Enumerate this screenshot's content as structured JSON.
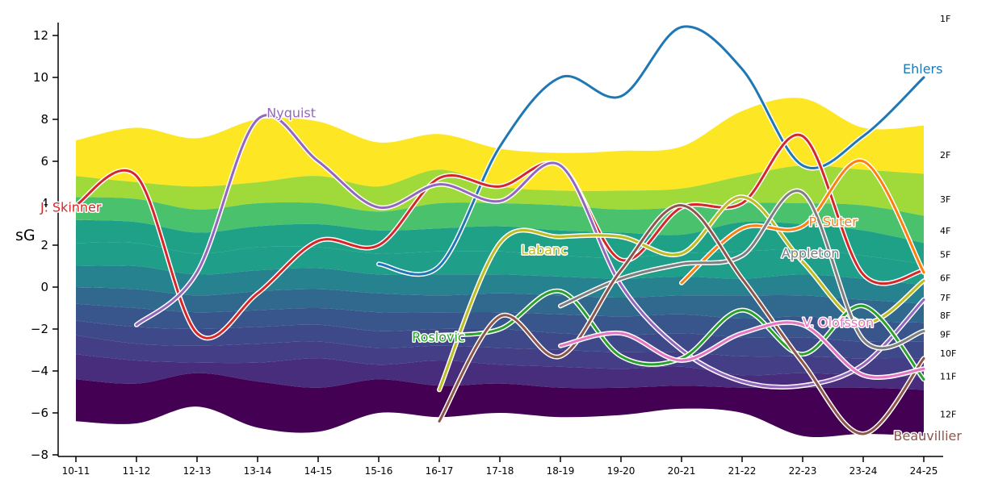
{
  "chart_data": {
    "type": "line",
    "ylabel": "sG",
    "ylim": [
      -8,
      12.5
    ],
    "yticks": [
      -8,
      -6,
      -4,
      -2,
      0,
      2,
      4,
      6,
      8,
      10,
      12
    ],
    "categories": [
      "10-11",
      "11-12",
      "12-13",
      "13-14",
      "14-15",
      "15-16",
      "16-17",
      "17-18",
      "18-19",
      "19-20",
      "20-21",
      "21-22",
      "22-23",
      "23-24",
      "24-25"
    ],
    "bands": {
      "labels": [
        "1F",
        "2F",
        "3F",
        "4F",
        "5F",
        "6F",
        "7F",
        "8F",
        "9F",
        "10F",
        "11F",
        "12F"
      ],
      "colors": [
        "#fde725",
        "#9fda3a",
        "#4ac16d",
        "#1fa187",
        "#1f9e89",
        "#26828e",
        "#31688e",
        "#39568c",
        "#3e4989",
        "#433e85",
        "#472d7b",
        "#440154"
      ],
      "boundaries": [
        [
          7.0,
          7.6,
          7.1,
          8.0,
          7.9,
          6.9,
          7.3,
          6.6,
          6.4,
          6.5,
          6.7,
          8.4,
          9.0,
          7.6,
          7.7
        ],
        [
          5.3,
          5.0,
          4.8,
          5.0,
          5.3,
          4.8,
          5.6,
          4.8,
          4.6,
          4.6,
          4.7,
          5.3,
          5.8,
          5.6,
          5.4
        ],
        [
          4.3,
          4.2,
          3.7,
          4.0,
          4.0,
          3.6,
          4.0,
          4.0,
          3.9,
          3.7,
          3.8,
          4.0,
          4.0,
          3.9,
          3.4
        ],
        [
          3.2,
          3.1,
          2.6,
          2.9,
          3.0,
          2.7,
          2.8,
          2.9,
          2.7,
          2.6,
          2.5,
          3.1,
          3.0,
          2.7,
          2.1
        ],
        [
          2.1,
          2.1,
          1.6,
          1.9,
          1.9,
          1.6,
          1.7,
          1.7,
          1.5,
          1.4,
          1.6,
          1.7,
          1.8,
          1.5,
          1.1
        ],
        [
          1.0,
          1.0,
          0.6,
          0.8,
          0.9,
          0.6,
          0.6,
          0.6,
          0.5,
          0.4,
          0.5,
          0.4,
          0.6,
          0.4,
          0.1
        ],
        [
          0.0,
          -0.1,
          -0.4,
          -0.2,
          -0.1,
          -0.3,
          -0.4,
          -0.3,
          -0.4,
          -0.5,
          -0.4,
          -0.4,
          -0.4,
          -0.6,
          -0.8
        ],
        [
          -0.8,
          -1.0,
          -1.2,
          -1.1,
          -1.0,
          -1.2,
          -1.2,
          -1.2,
          -1.3,
          -1.4,
          -1.3,
          -1.5,
          -1.4,
          -1.6,
          -1.7
        ],
        [
          -1.6,
          -1.9,
          -2.0,
          -1.9,
          -1.8,
          -2.1,
          -2.0,
          -2.0,
          -2.2,
          -2.3,
          -2.2,
          -2.4,
          -2.4,
          -2.6,
          -2.6
        ],
        [
          -2.3,
          -2.7,
          -2.8,
          -2.7,
          -2.6,
          -2.9,
          -2.8,
          -2.9,
          -3.0,
          -3.1,
          -3.1,
          -3.3,
          -3.3,
          -3.4,
          -3.4
        ],
        [
          -3.2,
          -3.5,
          -3.6,
          -3.6,
          -3.4,
          -3.7,
          -3.5,
          -3.7,
          -3.8,
          -3.9,
          -3.8,
          -4.2,
          -4.1,
          -4.2,
          -4.3
        ],
        [
          -4.4,
          -4.6,
          -4.1,
          -4.5,
          -4.8,
          -4.4,
          -4.7,
          -4.6,
          -4.8,
          -4.8,
          -4.7,
          -4.8,
          -4.8,
          -4.8,
          -4.9
        ],
        [
          -6.4,
          -6.5,
          -5.7,
          -6.7,
          -6.9,
          -6.0,
          -6.2,
          -6.0,
          -6.2,
          -6.1,
          -5.8,
          -6.0,
          -7.1,
          -7.0,
          -7.1
        ]
      ],
      "label_y": [
        12.8,
        6.3,
        4.2,
        2.7,
        1.55,
        0.45,
        -0.5,
        -1.35,
        -2.25,
        -3.15,
        -4.25,
        -6.05
      ]
    },
    "series": [
      {
        "name": "Ehlers",
        "color": "#1f77b4",
        "label_x": 14,
        "label_y": 10.2,
        "values": [
          null,
          null,
          null,
          null,
          null,
          1.1,
          1.0,
          6.7,
          10.0,
          9.1,
          12.4,
          10.4,
          5.8,
          7.2,
          10.0
        ]
      },
      {
        "name": "J. Skinner",
        "color": "#d62728",
        "label_x": 0,
        "label_y": 3.6,
        "values": [
          3.9,
          5.3,
          -2.2,
          -0.3,
          2.2,
          2.0,
          5.2,
          4.8,
          5.8,
          1.3,
          3.8,
          4.0,
          7.2,
          0.6,
          0.8
        ]
      },
      {
        "name": "Nyquist",
        "color": "#9467bd",
        "label_x": 3.15,
        "label_y": 8.1,
        "values": [
          null,
          -1.8,
          0.7,
          8.0,
          6.0,
          3.8,
          4.9,
          4.1,
          5.8,
          0.1,
          -3.0,
          -4.5,
          -4.7,
          -3.7,
          -0.6
        ]
      },
      {
        "name": "Labanc",
        "color": "#bcbd22",
        "label_x": 7.35,
        "label_y": 1.55,
        "values": [
          null,
          null,
          null,
          null,
          null,
          null,
          -4.9,
          2.1,
          2.4,
          2.4,
          1.6,
          4.3,
          1.2,
          -1.7,
          0.3
        ]
      },
      {
        "name": "Roslovic",
        "color": "#2ca02c",
        "label_x": 5.55,
        "label_y": -2.6,
        "values": [
          null,
          null,
          null,
          null,
          null,
          null,
          -2.3,
          -2.0,
          -0.2,
          -3.3,
          -3.4,
          -1.1,
          -3.2,
          -0.9,
          -4.4
        ]
      },
      {
        "name": "P. Suter",
        "color": "#ff7f0e",
        "label_x": 12.1,
        "label_y": 2.9,
        "values": [
          null,
          null,
          null,
          null,
          null,
          null,
          null,
          null,
          null,
          null,
          0.2,
          2.8,
          2.9,
          6.0,
          0.7
        ]
      },
      {
        "name": "Appleton",
        "color": "#7f7f7f",
        "label_x": 11.65,
        "label_y": 1.4,
        "values": [
          null,
          null,
          null,
          null,
          null,
          null,
          null,
          null,
          -0.9,
          0.4,
          1.1,
          1.5,
          4.5,
          -2.5,
          -2.1
        ]
      },
      {
        "name": "Beauvillier",
        "color": "#8c564b",
        "label_x": 13.5,
        "label_y": -7.3,
        "values": [
          null,
          null,
          null,
          null,
          null,
          null,
          -6.4,
          -1.4,
          -3.3,
          0.8,
          3.9,
          0.4,
          -3.6,
          -7.0,
          -3.4
        ]
      },
      {
        "name": "V. Olofsson",
        "color": "#e377c2",
        "label_x": 12.0,
        "label_y": -1.9,
        "values": [
          null,
          null,
          null,
          null,
          null,
          null,
          null,
          null,
          -2.8,
          -2.2,
          -3.5,
          -2.2,
          -1.8,
          -4.2,
          -3.9
        ]
      }
    ]
  }
}
